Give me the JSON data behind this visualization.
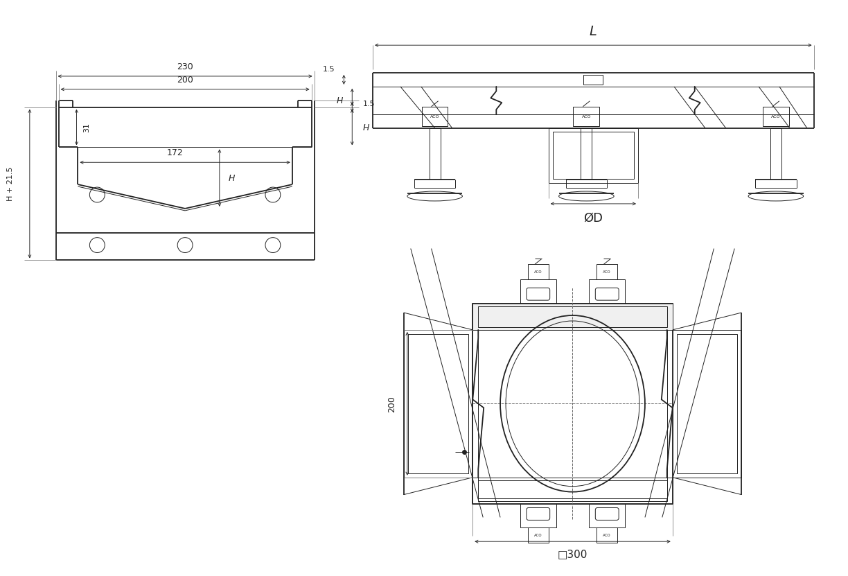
{
  "bg_color": "#ffffff",
  "lc": "#222222",
  "lw": 1.3,
  "tlw": 0.7,
  "dlw": 0.65,
  "labels": {
    "dim_230": "230",
    "dim_200": "200",
    "dim_172": "172",
    "dim_31": "31",
    "dim_H": "H",
    "dim_H21": "H + 21.5",
    "dim_15": "1.5",
    "dim_L": "L",
    "dim_OD": "ØD",
    "dim_front_200": "200",
    "dim_300": "□300",
    "aco": "ACO"
  }
}
